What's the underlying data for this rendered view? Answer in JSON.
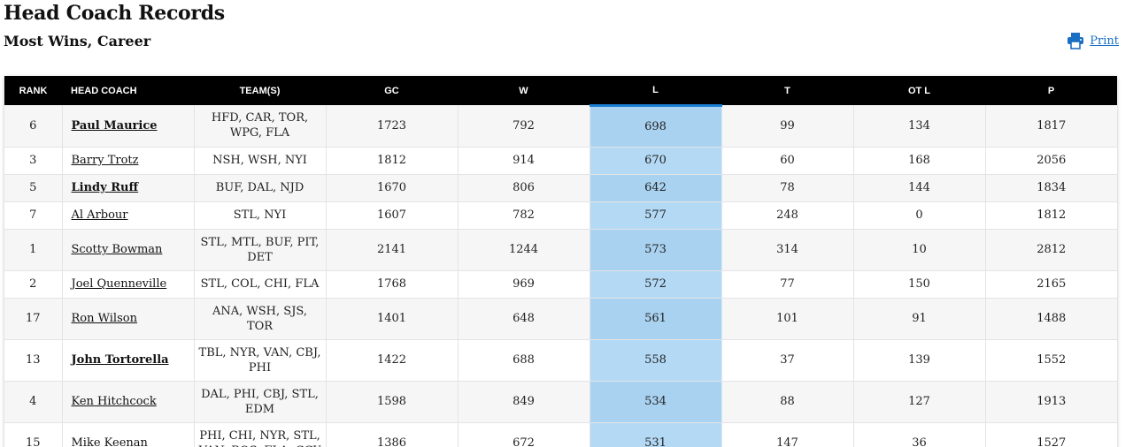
{
  "header": {
    "title": "Head Coach Records",
    "subtitle": "Most Wins, Career",
    "print_label": "Print"
  },
  "table": {
    "columns": [
      "RANK",
      "HEAD COACH",
      "TEAM(S)",
      "GC",
      "W",
      "L",
      "T",
      "OT L",
      "P"
    ],
    "sorted_column": "L",
    "rows": [
      {
        "rank": "6",
        "coach": "Paul Maurice",
        "active": true,
        "teams": "HFD, CAR, TOR, WPG, FLA",
        "gc": "1723",
        "w": "792",
        "l": "698",
        "t": "99",
        "otl": "134",
        "p": "1817"
      },
      {
        "rank": "3",
        "coach": "Barry Trotz",
        "active": false,
        "teams": "NSH, WSH, NYI",
        "gc": "1812",
        "w": "914",
        "l": "670",
        "t": "60",
        "otl": "168",
        "p": "2056"
      },
      {
        "rank": "5",
        "coach": "Lindy Ruff",
        "active": true,
        "teams": "BUF, DAL, NJD",
        "gc": "1670",
        "w": "806",
        "l": "642",
        "t": "78",
        "otl": "144",
        "p": "1834"
      },
      {
        "rank": "7",
        "coach": "Al Arbour",
        "active": false,
        "teams": "STL, NYI",
        "gc": "1607",
        "w": "782",
        "l": "577",
        "t": "248",
        "otl": "0",
        "p": "1812"
      },
      {
        "rank": "1",
        "coach": "Scotty Bowman",
        "active": false,
        "teams": "STL, MTL, BUF, PIT, DET",
        "gc": "2141",
        "w": "1244",
        "l": "573",
        "t": "314",
        "otl": "10",
        "p": "2812"
      },
      {
        "rank": "2",
        "coach": "Joel Quenneville",
        "active": false,
        "teams": "STL, COL, CHI, FLA",
        "gc": "1768",
        "w": "969",
        "l": "572",
        "t": "77",
        "otl": "150",
        "p": "2165"
      },
      {
        "rank": "17",
        "coach": "Ron Wilson",
        "active": false,
        "teams": "ANA, WSH, SJS, TOR",
        "gc": "1401",
        "w": "648",
        "l": "561",
        "t": "101",
        "otl": "91",
        "p": "1488"
      },
      {
        "rank": "13",
        "coach": "John Tortorella",
        "active": true,
        "teams": "TBL, NYR, VAN, CBJ, PHI",
        "gc": "1422",
        "w": "688",
        "l": "558",
        "t": "37",
        "otl": "139",
        "p": "1552"
      },
      {
        "rank": "4",
        "coach": "Ken Hitchcock",
        "active": false,
        "teams": "DAL, PHI, CBJ, STL, EDM",
        "gc": "1598",
        "w": "849",
        "l": "534",
        "t": "88",
        "otl": "127",
        "p": "1913"
      },
      {
        "rank": "15",
        "coach": "Mike Keenan",
        "active": false,
        "teams": "PHI, CHI, NYR, STL, VAN, BOS, FLA, CGY",
        "gc": "1386",
        "w": "672",
        "l": "531",
        "t": "147",
        "otl": "36",
        "p": "1527"
      }
    ]
  },
  "colors": {
    "header_bg": "#000000",
    "sorted_column_bg": "#b3d9f5",
    "sorted_indicator": "#1a7fd1",
    "link": "#1a6fc4"
  },
  "icons": {
    "print": "printer-icon"
  }
}
